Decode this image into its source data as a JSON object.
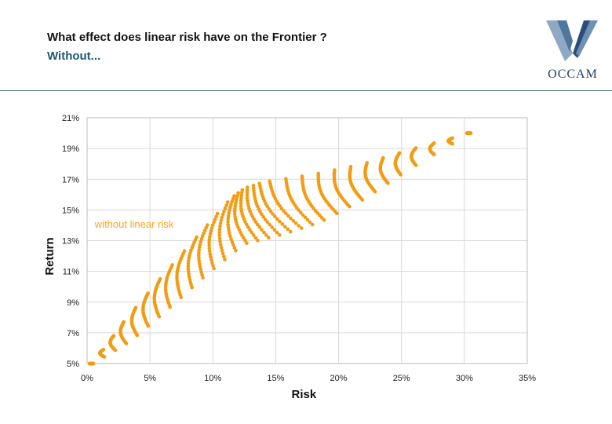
{
  "slide": {
    "title": "What effect does linear risk have on the Frontier ?",
    "subtitle": "Without..."
  },
  "logo": {
    "text": "OCCAM",
    "icon": "occam-v-logo-icon"
  },
  "colors": {
    "points": "#f39c12",
    "annotation": "#f5a623",
    "grid": "#d9d9d9",
    "title_blue": "#1f5a7a"
  },
  "chart_data": {
    "type": "scatter",
    "title": "",
    "xlabel": "Risk",
    "ylabel": "Return",
    "xlim": [
      0,
      35
    ],
    "ylim": [
      5,
      21
    ],
    "xticks": [
      "0%",
      "5%",
      "10%",
      "15%",
      "20%",
      "25%",
      "30%",
      "35%"
    ],
    "yticks": [
      "5%",
      "7%",
      "9%",
      "11%",
      "13%",
      "15%",
      "17%",
      "19%",
      "21%"
    ],
    "annotation": {
      "text": "without linear risk",
      "x": 0.3,
      "y": 14.1
    },
    "grid": true,
    "series": [
      {
        "name": "without linear risk",
        "frontier": [
          [
            0.5,
            5.0
          ],
          [
            3,
            7.8
          ],
          [
            6,
            10.7
          ],
          [
            9,
            13.5
          ],
          [
            11.5,
            15.8
          ],
          [
            12.5,
            16.4
          ],
          [
            14,
            16.8
          ],
          [
            18,
            17.3
          ],
          [
            22,
            18.0
          ],
          [
            26,
            19.0
          ],
          [
            30.5,
            20.0
          ]
        ],
        "inner_bound": [
          [
            0.5,
            5.0
          ],
          [
            3.5,
            6.5
          ],
          [
            6.5,
            8.6
          ],
          [
            9.5,
            10.8
          ],
          [
            12.5,
            12.8
          ],
          [
            15.5,
            13.4
          ],
          [
            18.5,
            14.2
          ],
          [
            22,
            15.7
          ],
          [
            25.5,
            17.6
          ],
          [
            30.5,
            20.0
          ]
        ],
        "curves": 32,
        "points_per_curve": 20
      }
    ]
  }
}
